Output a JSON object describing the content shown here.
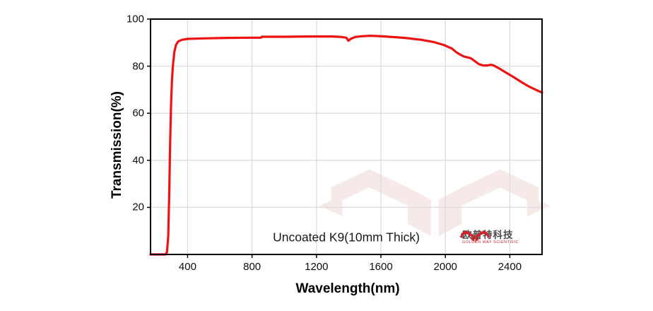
{
  "chart_data": {
    "type": "line",
    "title": "",
    "xlabel": "Wavelength(nm)",
    "ylabel": "Transmission(%)",
    "annotation": "Uncoated K9(10mm Thick)",
    "xlim": [
      170,
      2600
    ],
    "ylim": [
      0,
      100
    ],
    "x_ticks": [
      400,
      800,
      1200,
      1600,
      2000,
      2400
    ],
    "y_ticks": [
      20,
      40,
      60,
      80,
      100
    ],
    "grid": true,
    "legend": "none",
    "series": [
      {
        "name": "Uncoated K9 glass 10mm transmission",
        "color": "#ee1212",
        "points": [
          [
            170,
            0
          ],
          [
            262,
            0
          ],
          [
            272,
            1
          ],
          [
            280,
            8
          ],
          [
            286,
            25
          ],
          [
            292,
            48
          ],
          [
            297,
            63
          ],
          [
            303,
            74
          ],
          [
            310,
            81
          ],
          [
            318,
            86
          ],
          [
            328,
            89
          ],
          [
            342,
            90.5
          ],
          [
            365,
            91.2
          ],
          [
            400,
            91.6
          ],
          [
            500,
            91.8
          ],
          [
            650,
            92.0
          ],
          [
            800,
            92.1
          ],
          [
            856,
            92.1
          ],
          [
            861,
            92.5
          ],
          [
            1000,
            92.5
          ],
          [
            1150,
            92.6
          ],
          [
            1300,
            92.6
          ],
          [
            1355,
            92.4
          ],
          [
            1385,
            92.1
          ],
          [
            1398,
            90.8
          ],
          [
            1412,
            91.6
          ],
          [
            1440,
            92.4
          ],
          [
            1480,
            92.7
          ],
          [
            1530,
            92.9
          ],
          [
            1580,
            92.8
          ],
          [
            1650,
            92.5
          ],
          [
            1750,
            92.0
          ],
          [
            1850,
            91.2
          ],
          [
            1930,
            90.2
          ],
          [
            1990,
            89.0
          ],
          [
            2040,
            87.5
          ],
          [
            2070,
            85.8
          ],
          [
            2095,
            84.8
          ],
          [
            2115,
            84.1
          ],
          [
            2140,
            83.7
          ],
          [
            2160,
            83.3
          ],
          [
            2185,
            82.0
          ],
          [
            2210,
            80.8
          ],
          [
            2235,
            80.3
          ],
          [
            2260,
            80.3
          ],
          [
            2285,
            80.6
          ],
          [
            2300,
            80.3
          ],
          [
            2330,
            79.2
          ],
          [
            2370,
            77.5
          ],
          [
            2420,
            75.5
          ],
          [
            2470,
            73.3
          ],
          [
            2520,
            71.3
          ],
          [
            2560,
            70.0
          ],
          [
            2600,
            68.8
          ]
        ]
      }
    ]
  },
  "labels": {
    "y_axis_title": "Transmission(%)",
    "x_axis_title": "Wavelength(nm)",
    "annotation": "Uncoated K9(10mm Thick)"
  },
  "logo": {
    "cn_text": "欧普特科技",
    "en_text": "GOLDEN WAY SCIENTIFIC",
    "mark_icon": "golden-way-logo-mark",
    "watermark_icon": "golden-way-logo-watermark"
  },
  "colors": {
    "curve_red": "#ee1212",
    "logo_red": "#c9252b",
    "watermark_pink": "#f6eae9",
    "grid_gray": "#dcdcdc",
    "axis_black": "#000000",
    "background": "#ffffff"
  }
}
